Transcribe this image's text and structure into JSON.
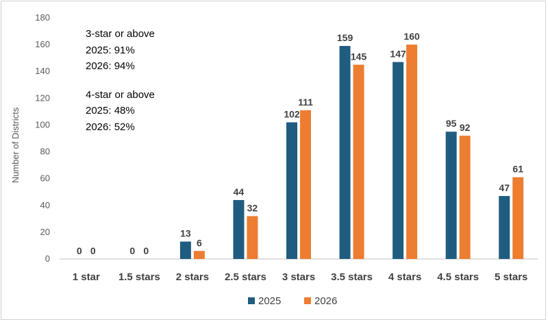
{
  "chart_data": {
    "type": "bar",
    "categories": [
      "1 star",
      "1.5 stars",
      "2 stars",
      "2.5 stars",
      "3 stars",
      "3.5 stars",
      "4 stars",
      "4.5 stars",
      "5 stars"
    ],
    "series": [
      {
        "name": "2025",
        "color": "#1F5C80",
        "values": [
          0,
          0,
          13,
          44,
          102,
          159,
          147,
          95,
          47
        ]
      },
      {
        "name": "2026",
        "color": "#ED7D31",
        "values": [
          0,
          0,
          6,
          32,
          111,
          145,
          160,
          92,
          61
        ]
      }
    ],
    "ylabel": "Number of Districts",
    "ylim": [
      0,
      180
    ],
    "yticks": [
      0,
      20,
      40,
      60,
      80,
      100,
      120,
      140,
      160,
      180
    ],
    "grid": false,
    "legend_position": "bottom-center",
    "annotations": [
      "3-star or above",
      "2025: 91%",
      "2026: 94%",
      "4-star or above",
      "2025: 48%",
      "2026: 52%"
    ]
  }
}
